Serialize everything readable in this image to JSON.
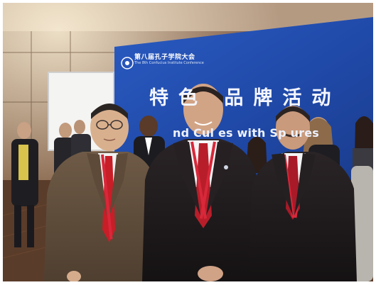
{
  "scene": {
    "type": "photograph",
    "subject": "three men in suits posing in front of a blue conference banner",
    "colors": {
      "wall": "#7a5a44",
      "banner": "#1f4aa8",
      "floor": "#5a3c2a"
    }
  },
  "banner": {
    "conference_cn": "第八届孔子学院大会",
    "conference_en": "The 8th Confucius Institute Conference",
    "slogan_cn": "特色    品牌活动",
    "slogan_en": "nd Cul      es with Sp      ures"
  }
}
